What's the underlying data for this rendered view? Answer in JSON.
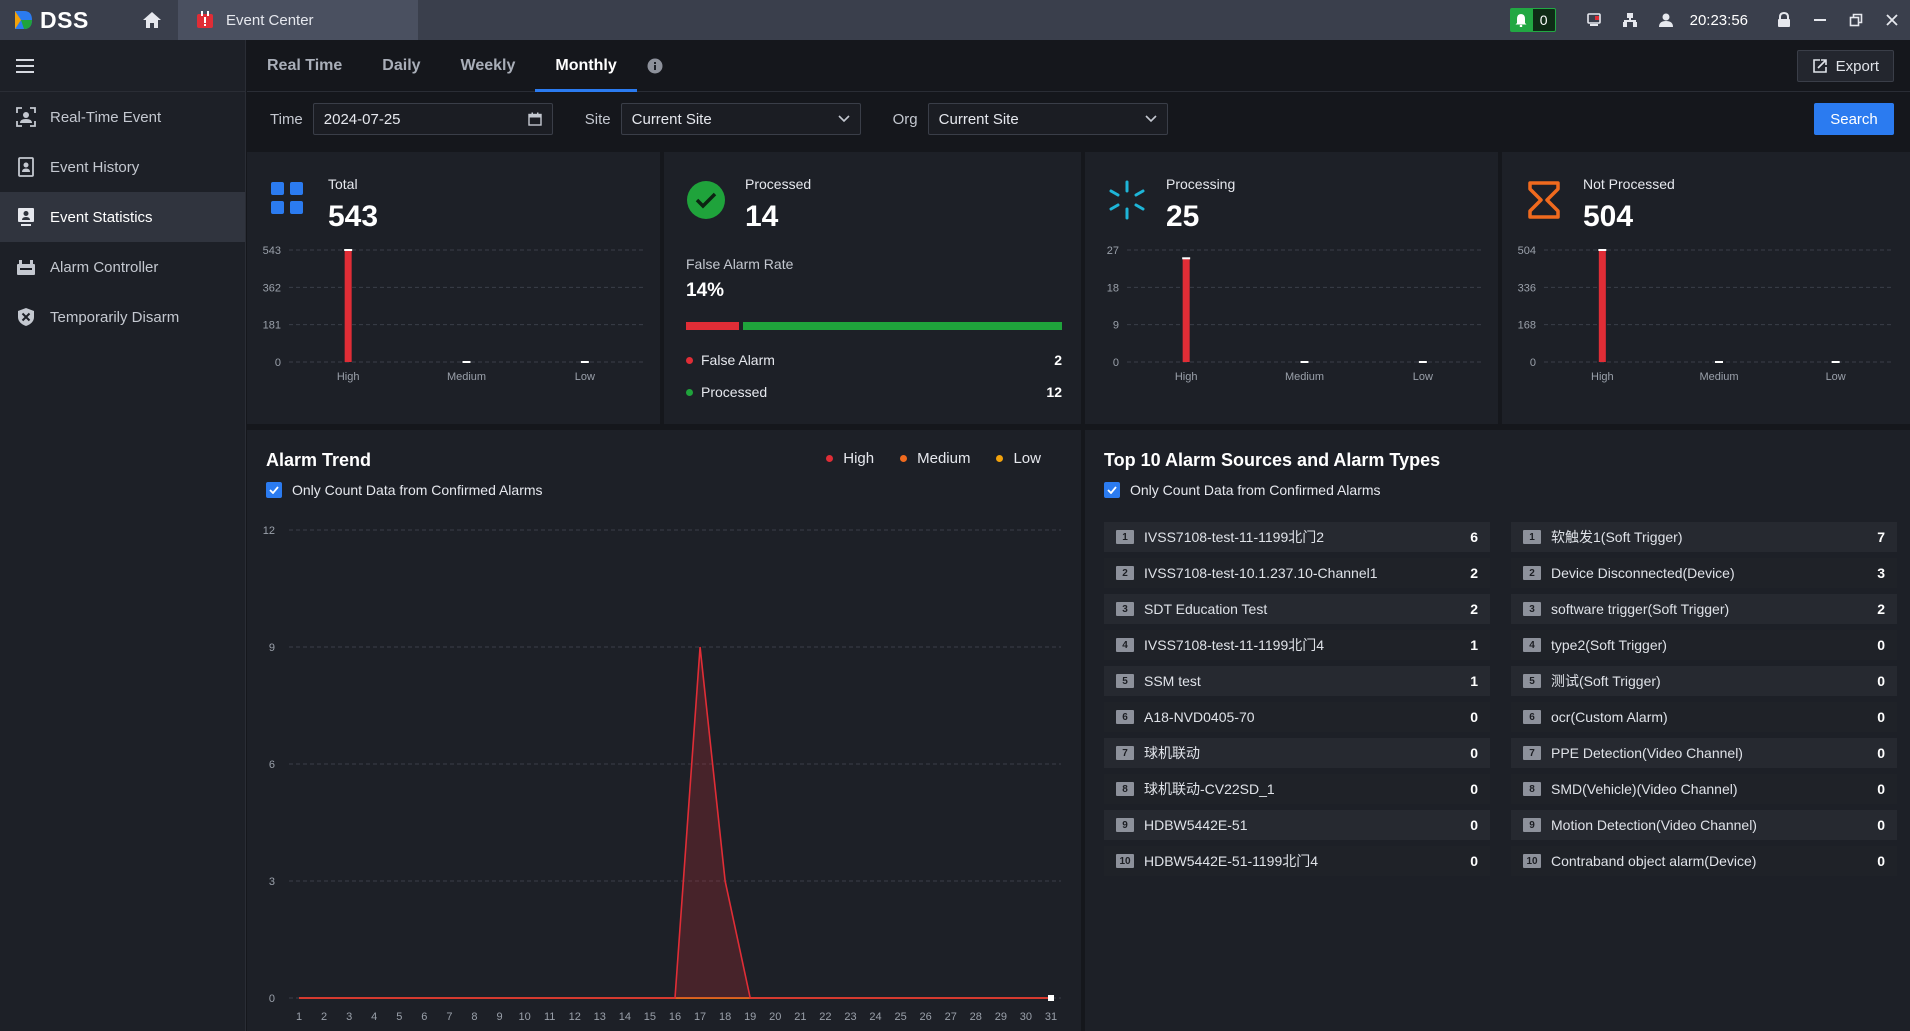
{
  "app": {
    "name": "DSS",
    "tab_title": "Event Center",
    "notification_count": "0",
    "clock": "20:23:56"
  },
  "sidebar": {
    "items": [
      {
        "label": "Real-Time Event",
        "icon": "realtime-event-icon"
      },
      {
        "label": "Event History",
        "icon": "event-history-icon"
      },
      {
        "label": "Event Statistics",
        "icon": "event-statistics-icon"
      },
      {
        "label": "Alarm Controller",
        "icon": "alarm-controller-icon"
      },
      {
        "label": "Temporarily Disarm",
        "icon": "disarm-icon"
      }
    ],
    "active": "Event Statistics"
  },
  "tabs": [
    {
      "label": "Real Time"
    },
    {
      "label": "Daily"
    },
    {
      "label": "Weekly"
    },
    {
      "label": "Monthly"
    }
  ],
  "active_tab": "Monthly",
  "export_label": "Export",
  "filters": {
    "time_label": "Time",
    "time_value": "2024-07-25",
    "site_label": "Site",
    "site_value": "Current Site",
    "org_label": "Org",
    "org_value": "Current Site",
    "search_label": "Search"
  },
  "colors": {
    "high": "#e02d36",
    "medium": "#f06a1e",
    "low": "#f2a20c",
    "accent": "#2b7bf0",
    "processed": "#1fa33b"
  },
  "cards": {
    "total": {
      "title": "Total",
      "value": "543",
      "chart_data": {
        "type": "bar",
        "categories": [
          "High",
          "Medium",
          "Low"
        ],
        "values": [
          543,
          0,
          0
        ],
        "ylim": [
          0,
          543
        ],
        "yticks": [
          "0",
          "181",
          "362",
          "543"
        ]
      }
    },
    "processed": {
      "title": "Processed",
      "value": "14",
      "false_alarm_rate_label": "False Alarm Rate",
      "false_alarm_rate": "14%",
      "false_alarm_fraction": 0.14,
      "legend": [
        {
          "label": "False Alarm",
          "count": "2"
        },
        {
          "label": "Processed",
          "count": "12"
        }
      ]
    },
    "processing": {
      "title": "Processing",
      "value": "25",
      "chart_data": {
        "type": "bar",
        "categories": [
          "High",
          "Medium",
          "Low"
        ],
        "values": [
          25,
          0,
          0
        ],
        "ylim": [
          0,
          27
        ],
        "yticks": [
          "0",
          "9",
          "18",
          "27"
        ]
      }
    },
    "not_processed": {
      "title": "Not Processed",
      "value": "504",
      "chart_data": {
        "type": "bar",
        "categories": [
          "High",
          "Medium",
          "Low"
        ],
        "values": [
          504,
          0,
          0
        ],
        "ylim": [
          0,
          504
        ],
        "yticks": [
          "0",
          "168",
          "336",
          "504"
        ]
      }
    }
  },
  "trend": {
    "title": "Alarm Trend",
    "checkbox_label": "Only Count Data from Confirmed Alarms",
    "legend": [
      "High",
      "Medium",
      "Low"
    ],
    "chart_data": {
      "type": "line",
      "x": [
        "1",
        "2",
        "3",
        "4",
        "5",
        "6",
        "7",
        "8",
        "9",
        "10",
        "11",
        "12",
        "13",
        "14",
        "15",
        "16",
        "17",
        "18",
        "19",
        "20",
        "21",
        "22",
        "23",
        "24",
        "25",
        "26",
        "27",
        "28",
        "29",
        "30",
        "31"
      ],
      "ylim": [
        0,
        12
      ],
      "yticks": [
        "0",
        "3",
        "6",
        "9",
        "12"
      ],
      "series": [
        {
          "name": "High",
          "values": [
            0,
            0,
            0,
            0,
            0,
            0,
            0,
            0,
            0,
            0,
            0,
            0,
            0,
            0,
            0,
            0,
            9,
            3,
            0,
            0,
            0,
            0,
            0,
            0,
            0,
            0,
            0,
            0,
            0,
            0,
            0
          ]
        },
        {
          "name": "Medium",
          "values": [
            0,
            0,
            0,
            0,
            0,
            0,
            0,
            0,
            0,
            0,
            0,
            0,
            0,
            0,
            0,
            0,
            0,
            0,
            0,
            0,
            0,
            0,
            0,
            0,
            0,
            0,
            0,
            0,
            0,
            0,
            0
          ]
        },
        {
          "name": "Low",
          "values": [
            0,
            0,
            0,
            0,
            0,
            0,
            0,
            0,
            0,
            0,
            0,
            0,
            0,
            0,
            0,
            0,
            0,
            0,
            0,
            0,
            0,
            0,
            0,
            0,
            0,
            0,
            0,
            0,
            0,
            0,
            0
          ]
        }
      ]
    }
  },
  "top10": {
    "title": "Top 10 Alarm Sources and Alarm Types",
    "checkbox_label": "Only Count Data from Confirmed Alarms",
    "sources": [
      {
        "rank": "1",
        "name": "IVSS7108-test-11-1199北门2",
        "count": "6"
      },
      {
        "rank": "2",
        "name": "IVSS7108-test-10.1.237.10-Channel1",
        "count": "2"
      },
      {
        "rank": "3",
        "name": "SDT Education Test",
        "count": "2"
      },
      {
        "rank": "4",
        "name": "IVSS7108-test-11-1199北门4",
        "count": "1"
      },
      {
        "rank": "5",
        "name": "SSM test",
        "count": "1"
      },
      {
        "rank": "6",
        "name": "A18-NVD0405-70",
        "count": "0"
      },
      {
        "rank": "7",
        "name": "球机联动",
        "count": "0"
      },
      {
        "rank": "8",
        "name": "球机联动-CV22SD_1",
        "count": "0"
      },
      {
        "rank": "9",
        "name": "HDBW5442E-51",
        "count": "0"
      },
      {
        "rank": "10",
        "name": "HDBW5442E-51-1199北门4",
        "count": "0"
      }
    ],
    "types": [
      {
        "rank": "1",
        "name": "软触发1(Soft Trigger)",
        "count": "7"
      },
      {
        "rank": "2",
        "name": "Device Disconnected(Device)",
        "count": "3"
      },
      {
        "rank": "3",
        "name": "software trigger(Soft Trigger)",
        "count": "2"
      },
      {
        "rank": "4",
        "name": "type2(Soft Trigger)",
        "count": "0"
      },
      {
        "rank": "5",
        "name": "测试(Soft Trigger)",
        "count": "0"
      },
      {
        "rank": "6",
        "name": "ocr(Custom Alarm)",
        "count": "0"
      },
      {
        "rank": "7",
        "name": "PPE Detection(Video Channel)",
        "count": "0"
      },
      {
        "rank": "8",
        "name": "SMD(Vehicle)(Video Channel)",
        "count": "0"
      },
      {
        "rank": "9",
        "name": "Motion Detection(Video Channel)",
        "count": "0"
      },
      {
        "rank": "10",
        "name": "Contraband object alarm(Device)",
        "count": "0"
      }
    ]
  }
}
